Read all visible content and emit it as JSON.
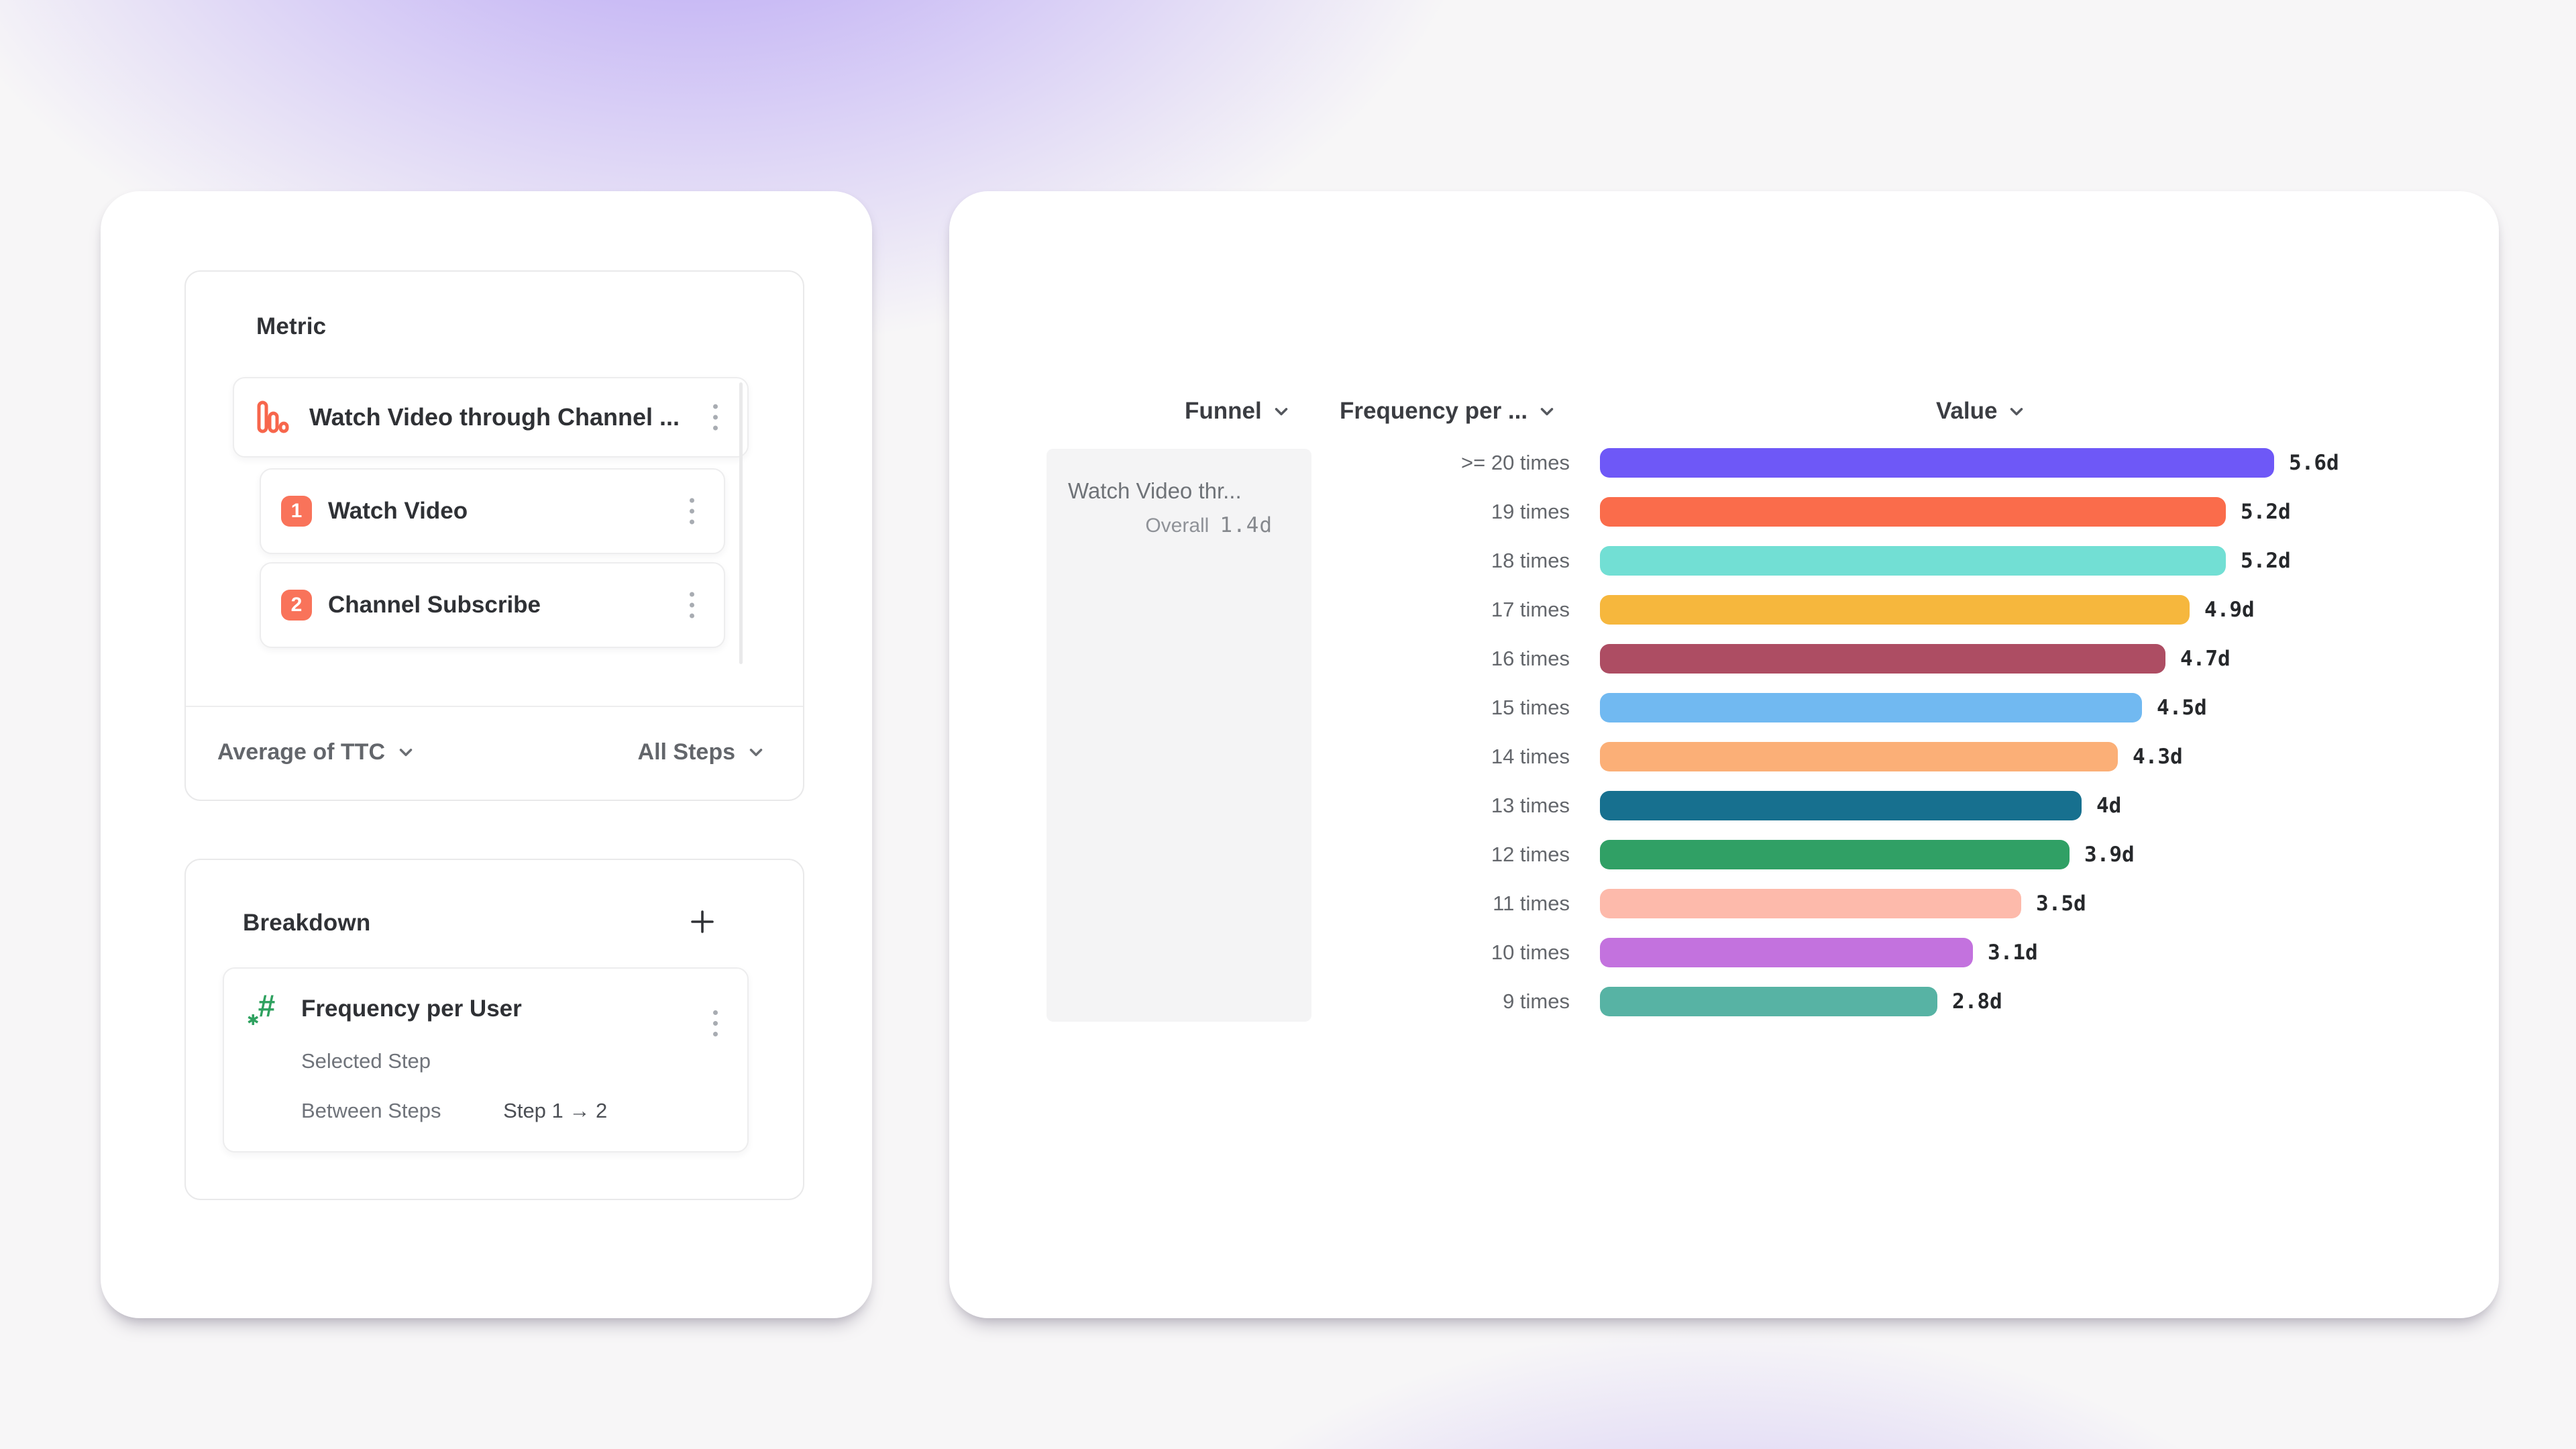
{
  "metric": {
    "title": "Metric",
    "funnel": {
      "name": "Watch Video through Channel ...",
      "steps": [
        {
          "index": "1",
          "label": "Watch Video"
        },
        {
          "index": "2",
          "label": "Channel Subscribe"
        }
      ]
    },
    "measure_dropdown": "Average of TTC",
    "steps_dropdown": "All Steps"
  },
  "breakdown": {
    "title": "Breakdown",
    "property": {
      "name": "Frequency per User",
      "selected_step_label": "Selected Step",
      "between_steps_label": "Between Steps",
      "between_steps_value": "Step 1 → 2"
    }
  },
  "chart": {
    "columns": [
      {
        "label": "Funnel"
      },
      {
        "label": "Frequency per ..."
      },
      {
        "label": "Value"
      }
    ],
    "funnel_cell": {
      "name": "Watch Video thr...",
      "overall_label": "Overall",
      "overall_value": "1.4d"
    }
  },
  "chart_data": {
    "type": "bar",
    "orientation": "horizontal",
    "title": "",
    "xlabel": "Value",
    "ylabel": "Frequency per User",
    "categories": [
      ">= 20 times",
      "19 times",
      "18 times",
      "17 times",
      "16 times",
      "15 times",
      "14 times",
      "13 times",
      "12 times",
      "11 times",
      "10 times",
      "9 times"
    ],
    "values": [
      5.6,
      5.2,
      5.2,
      4.9,
      4.7,
      4.5,
      4.3,
      4.0,
      3.9,
      3.5,
      3.1,
      2.8
    ],
    "value_labels": [
      "5.6d",
      "5.2d",
      "5.2d",
      "4.9d",
      "4.7d",
      "4.5d",
      "4.3d",
      "4d",
      "3.9d",
      "3.5d",
      "3.1d",
      "2.8d"
    ],
    "unit": "days",
    "xlim": [
      0,
      5.6
    ],
    "grid": false,
    "legend": "none",
    "bar_colors": [
      "#6e58f7",
      "#fa6c4b",
      "#72dfd4",
      "#f6b73d",
      "#ad4d63",
      "#71b9f1",
      "#fbaf77",
      "#17708f",
      "#30a065",
      "#fdbaab",
      "#c372de",
      "#57b3a4"
    ]
  },
  "icons": {
    "funnel-metric-icon": "three descending outlined orange bars",
    "numeric-property-icon": "green # with asterisk",
    "kebab-menu-icon": "vertical three dots",
    "chevron-down-icon": "v chevron",
    "plus-icon": "+"
  },
  "colors": {
    "accent_orange": "#f9735a",
    "accent_green": "#2ea15f",
    "background_purple": "#8867f2",
    "card_white": "#ffffff",
    "funnel_cell_bg": "#f4f4f5"
  }
}
